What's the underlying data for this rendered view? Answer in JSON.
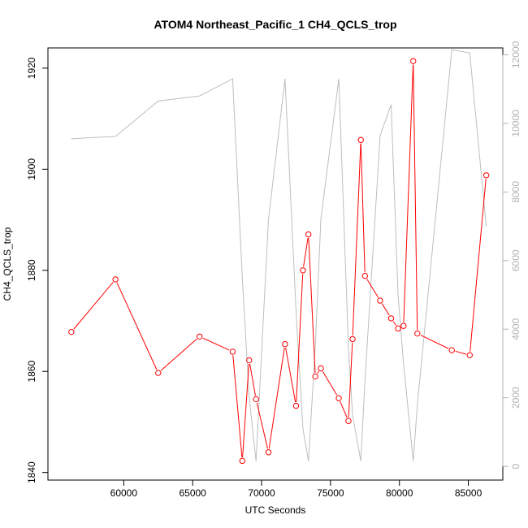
{
  "chart_data": {
    "type": "line",
    "title": "ATOM4 Northeast_Pacific_1 CH4_QCLS_trop",
    "xlabel": "UTC Seconds",
    "ylabel": "CH4_QCLS_trop",
    "xlim": [
      54500,
      87500
    ],
    "ylim": [
      1838.5,
      1924
    ],
    "y2lim": [
      -400,
      12200
    ],
    "x_ticks": [
      60000,
      65000,
      70000,
      75000,
      80000,
      85000
    ],
    "y_ticks": [
      1840,
      1860,
      1880,
      1900,
      1920
    ],
    "y2_ticks": [
      0,
      2000,
      4000,
      6000,
      8000,
      10000,
      12000
    ],
    "grid": false,
    "legend": "none",
    "series": [
      {
        "axis": "left",
        "color": "#ff0000",
        "marker": "open-circle",
        "x": [
          56200,
          59400,
          62500,
          65500,
          67900,
          68600,
          69100,
          69600,
          70500,
          71700,
          72500,
          73000,
          73400,
          73900,
          74300,
          75600,
          76300,
          76600,
          77200,
          77500,
          78600,
          79400,
          79900,
          80300,
          81000,
          81300,
          83800,
          85100,
          86300
        ],
        "y": [
          1867.8,
          1878.2,
          1859.7,
          1866.9,
          1863.9,
          1842.3,
          1862.2,
          1854.5,
          1844.0,
          1865.4,
          1853.2,
          1880.0,
          1887.1,
          1859.0,
          1860.6,
          1854.7,
          1850.2,
          1866.4,
          1905.8,
          1878.9,
          1874.0,
          1870.5,
          1868.5,
          1869.0,
          1921.4,
          1867.5,
          1864.2,
          1863.2,
          1898.8
        ]
      },
      {
        "axis": "right",
        "color": "#bebebe",
        "marker": "none",
        "x": [
          56200,
          59400,
          62500,
          65500,
          67900,
          68600,
          69100,
          69600,
          70500,
          71700,
          72500,
          73000,
          73400,
          73900,
          74300,
          75600,
          76300,
          76600,
          77200,
          77500,
          78600,
          79400,
          79900,
          80300,
          81000,
          81300,
          83800,
          85100,
          86300
        ],
        "y": [
          9550,
          9620,
          10650,
          10800,
          11300,
          5500,
          2000,
          150,
          7200,
          11300,
          4500,
          1100,
          150,
          3500,
          7200,
          11300,
          3500,
          1500,
          150,
          2500,
          9650,
          10550,
          5000,
          3000,
          150,
          1800,
          12150,
          12050,
          7000
        ]
      }
    ]
  }
}
